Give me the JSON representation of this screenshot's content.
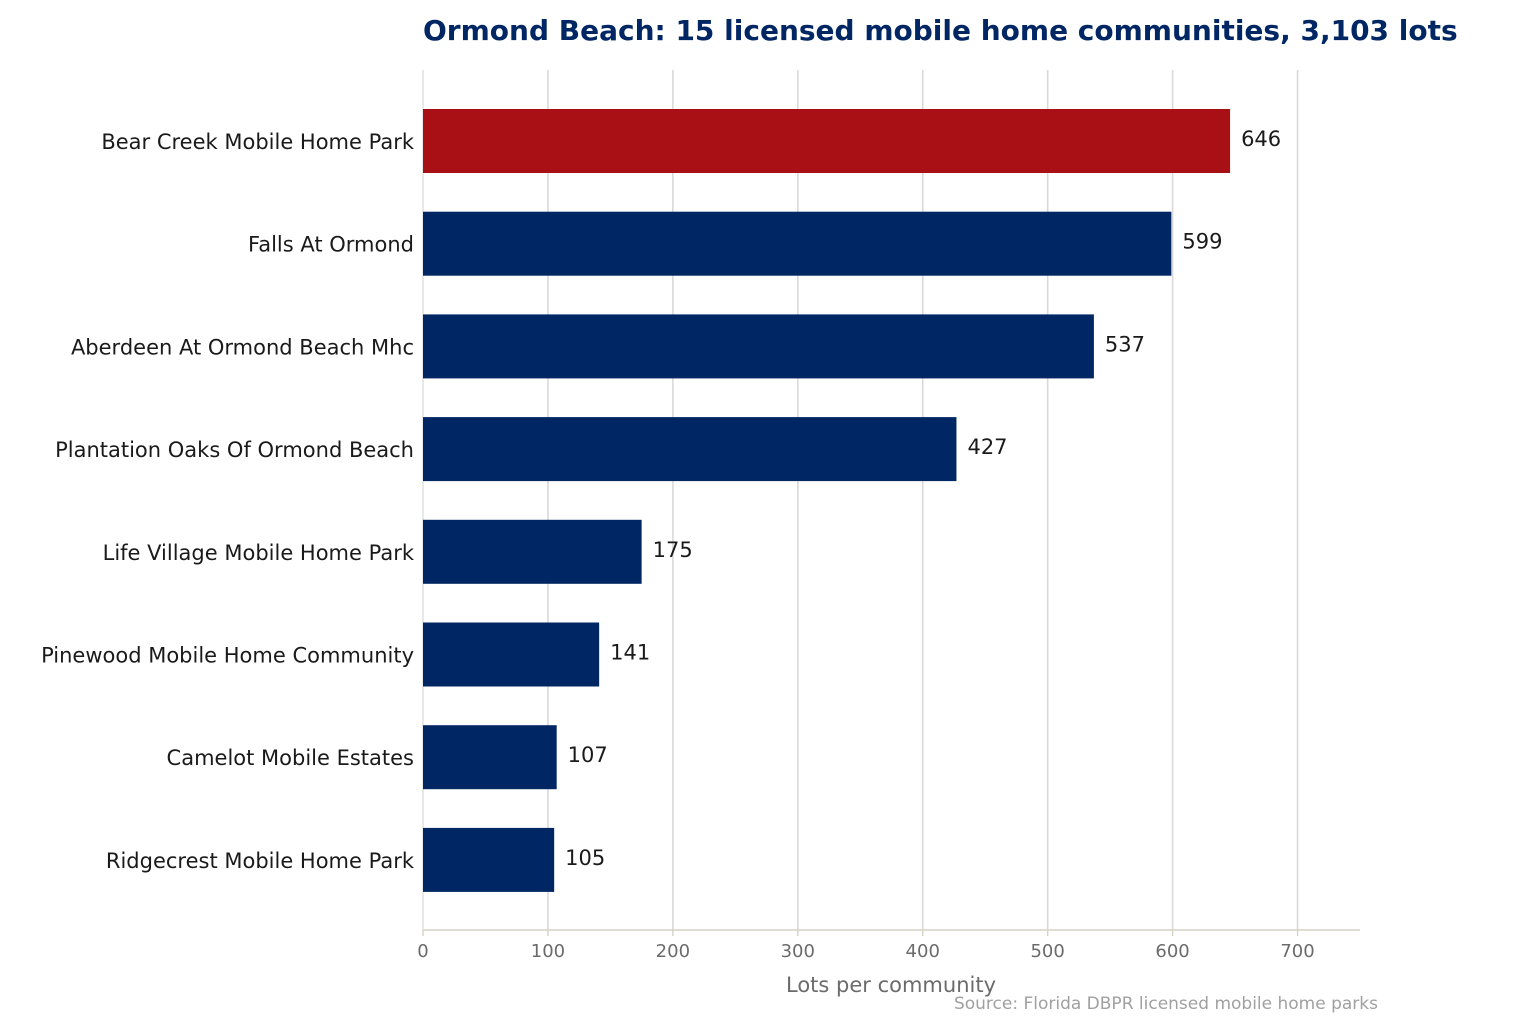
{
  "colors": {
    "title": "#002664",
    "bar": "#002664",
    "highlight": "#a81016",
    "grid": "#d9d9d9",
    "axis_line": "#d6d2c4",
    "category_text": "#1a1a1a",
    "value_text": "#1a1a1a",
    "tick_text": "#6b6b6b",
    "axis_title_text": "#6b6b6b",
    "source_text": "#a0a0a0"
  },
  "chart_data": {
    "type": "bar",
    "orientation": "horizontal",
    "title": "Ormond Beach: 15 licensed mobile home communities, 3,103 lots",
    "xlabel": "Lots per community",
    "ylabel": "",
    "source": "Source: Florida DBPR licensed mobile home parks",
    "categories": [
      "Bear Creek Mobile Home Park",
      "Falls At Ormond",
      "Aberdeen At Ormond Beach Mhc",
      "Plantation Oaks Of Ormond Beach",
      "Life Village Mobile Home Park",
      "Pinewood Mobile Home Community",
      "Camelot Mobile Estates",
      "Ridgecrest Mobile Home Park"
    ],
    "values": [
      646,
      599,
      537,
      427,
      175,
      141,
      107,
      105
    ],
    "value_labels": [
      "646",
      "599",
      "537",
      "427",
      "175",
      "141",
      "107",
      "105"
    ],
    "highlight_index": 0,
    "xlim": [
      0,
      750
    ],
    "xticks": [
      0,
      100,
      200,
      300,
      400,
      500,
      600,
      700
    ],
    "xtick_labels": [
      "0",
      "100",
      "200",
      "300",
      "400",
      "500",
      "600",
      "700"
    ],
    "grid": "vertical"
  }
}
